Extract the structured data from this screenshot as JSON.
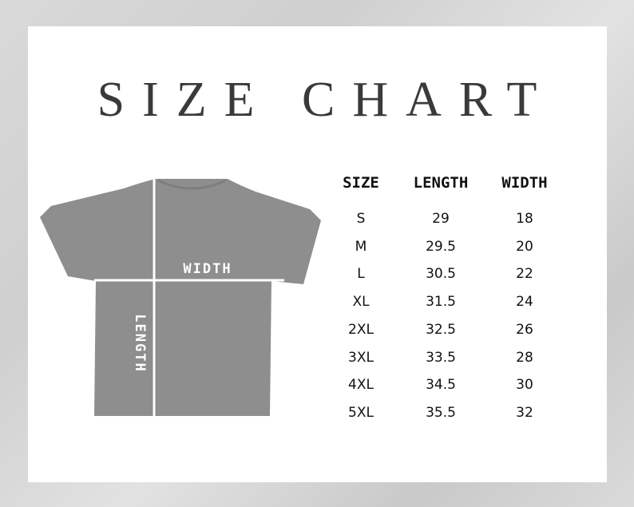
{
  "title": "SIZE CHART",
  "diagram": {
    "width_label": "WIDTH",
    "length_label": "LENGTH",
    "shirt_color": "#8e8e8e"
  },
  "table": {
    "headers": [
      "SIZE",
      "LENGTH",
      "WIDTH"
    ],
    "rows": [
      [
        "S",
        "29",
        "18"
      ],
      [
        "M",
        "29.5",
        "20"
      ],
      [
        "L",
        "30.5",
        "22"
      ],
      [
        "XL",
        "31.5",
        "24"
      ],
      [
        "2XL",
        "32.5",
        "26"
      ],
      [
        "3XL",
        "33.5",
        "28"
      ],
      [
        "4XL",
        "34.5",
        "30"
      ],
      [
        "5XL",
        "35.5",
        "32"
      ]
    ]
  }
}
